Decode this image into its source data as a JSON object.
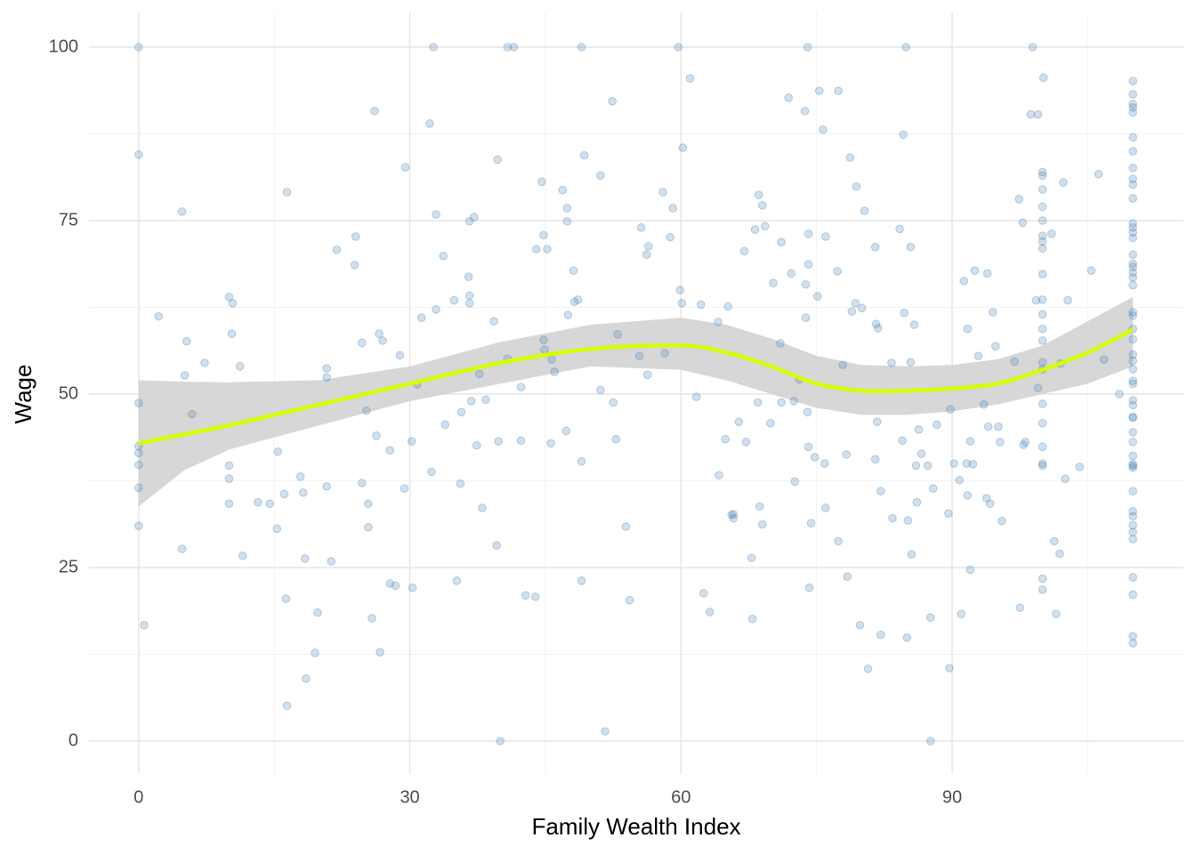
{
  "chart_data": {
    "type": "scatter",
    "x_label": "Family Wealth Index",
    "y_label": "Wage",
    "xlim": [
      -5.5,
      115.6
    ],
    "ylim": [
      -4.7,
      105
    ],
    "xticks": [
      0,
      30,
      60,
      90
    ],
    "yticks": [
      0,
      25,
      50,
      75,
      100
    ],
    "x_minor_grid": [
      15,
      45,
      75,
      105
    ],
    "y_minor_grid": [
      12.5,
      37.5,
      62.5,
      87.5
    ],
    "grid": true,
    "points": {
      "color": "#4682b4",
      "opacity": 0.25,
      "x": [
        0,
        0,
        0,
        0,
        0,
        0,
        0,
        0,
        0.6,
        2.2,
        4.8,
        4.8,
        5.3,
        5.1,
        5.9,
        7.3,
        10,
        10.4,
        10.3,
        10,
        10,
        10,
        11.2,
        11.5,
        13.2,
        14.5,
        15.4,
        15.3,
        16.1,
        16.3,
        16.4,
        16.4,
        17.9,
        18.2,
        18.4,
        18.5,
        19.8,
        19.5,
        20.8,
        20.8,
        20.8,
        21.3,
        21.9,
        24,
        23.9,
        24.7,
        24.7,
        25.2,
        25.4,
        25.4,
        25.8,
        26.1,
        26.3,
        26.6,
        27,
        26.7,
        27.8,
        27.8,
        28.4,
        28.9,
        29.4,
        29.5,
        30.2,
        30.3,
        30.8,
        31.3,
        32.2,
        32.4,
        32.6,
        32.9,
        32.9,
        33.7,
        33.9,
        34.9,
        35.2,
        35.7,
        35.6,
        36.5,
        36.6,
        37.1,
        36.6,
        36.6,
        36.8,
        37.4,
        37.7,
        38,
        38.4,
        39.3,
        39.6,
        39.7,
        39.8,
        40,
        40.8,
        41.5,
        40.8,
        42.3,
        42.3,
        42.8,
        43.9,
        44,
        44.6,
        44.8,
        45.2,
        44.8,
        44.9,
        45.7,
        46,
        45.6,
        46.9,
        47.4,
        47.4,
        47.5,
        47.3,
        48.1,
        48.2,
        48.6,
        49,
        49.3,
        49,
        49,
        51.1,
        51.1,
        51.6,
        52.4,
        52.5,
        52.8,
        53,
        53.9,
        54.3,
        55.4,
        55.6,
        56.2,
        56.4,
        56.3,
        58,
        58.2,
        58.8,
        59.1,
        59.7,
        59.9,
        60.1,
        60.2,
        61,
        61.7,
        62.2,
        62.5,
        63.2,
        64.1,
        64.2,
        64.9,
        65.2,
        65.6,
        65.8,
        65.8,
        66.4,
        67,
        67.2,
        67.8,
        67.9,
        68.2,
        68.5,
        68.6,
        68.7,
        69,
        69.3,
        69,
        69.9,
        70.2,
        71,
        71.1,
        71.1,
        71.9,
        72.2,
        72.6,
        72.5,
        73.1,
        73.8,
        73.7,
        74,
        73.8,
        74,
        74.1,
        74.1,
        74.1,
        74.2,
        74.4,
        74.8,
        75.1,
        75.3,
        75.7,
        76,
        75.9,
        76,
        77.3,
        77.4,
        77.4,
        77.9,
        78.3,
        78.4,
        78.7,
        78.9,
        79.4,
        79.3,
        79.8,
        80,
        80.3,
        80.7,
        81.5,
        81.6,
        81.8,
        81.5,
        81.7,
        82.1,
        82.1,
        83.3,
        83.4,
        84.2,
        84.6,
        84.5,
        84.7,
        84.9,
        85.1,
        85,
        85.4,
        85.4,
        85.5,
        85.8,
        86,
        86.1,
        86.3,
        86.6,
        87.3,
        87.6,
        87.6,
        87.9,
        88.3,
        89.6,
        89.7,
        89.8,
        90.2,
        90.8,
        91,
        91.3,
        91.6,
        91.7,
        91.7,
        92,
        92,
        92.3,
        92.5,
        92.9,
        93.5,
        93.9,
        93.8,
        94,
        94.2,
        94.5,
        94.8,
        95.1,
        95.3,
        95.5,
        96.9,
        97.4,
        97.5,
        97.9,
        98.1,
        97.8,
        98.7,
        98.9,
        99.5,
        99.3,
        99.5,
        100.1,
        101,
        101.5,
        101.3,
        102,
        101.9,
        102.3,
        102.5,
        102.8,
        104.1,
        105.4,
        106.2,
        106.8,
        108.5,
        100,
        100,
        100,
        100,
        100,
        100,
        100,
        100,
        100,
        100,
        100,
        100,
        100,
        100,
        100,
        100,
        100,
        100,
        100,
        100,
        100,
        100,
        110,
        110,
        110,
        110,
        110,
        110,
        110,
        110,
        110,
        110,
        110,
        110,
        110,
        110,
        110,
        110,
        110,
        110,
        110,
        110,
        110,
        110,
        110,
        110,
        110,
        110,
        110,
        110,
        110,
        110,
        110,
        110,
        110,
        110,
        110,
        110,
        110,
        110,
        110,
        110,
        110,
        110,
        110,
        110,
        110,
        110,
        110,
        110,
        110,
        110
      ],
      "y": [
        100,
        84.5,
        48.7,
        42.5,
        41.5,
        39.8,
        36.5,
        31,
        16.7,
        61.2,
        76.3,
        27.7,
        57.6,
        52.7,
        47.1,
        54.5,
        64,
        63.1,
        58.7,
        39.7,
        37.8,
        34.2,
        54,
        26.7,
        34.4,
        34.2,
        41.7,
        30.6,
        35.6,
        20.5,
        79.1,
        5.1,
        38.1,
        35.8,
        26.3,
        9,
        18.5,
        12.7,
        53.7,
        52.4,
        36.7,
        25.9,
        70.8,
        72.7,
        68.6,
        57.4,
        37.2,
        47.6,
        34.2,
        30.8,
        17.7,
        90.8,
        44,
        58.7,
        57.7,
        12.8,
        41.9,
        22.7,
        22.4,
        55.6,
        36.4,
        82.7,
        43.2,
        22.1,
        51.4,
        61,
        89,
        38.8,
        100,
        75.9,
        62.2,
        69.9,
        45.6,
        63.5,
        23.1,
        47.4,
        37.1,
        66.9,
        74.9,
        75.5,
        64.2,
        63.1,
        49,
        42.6,
        52.9,
        33.6,
        49.2,
        60.5,
        28.2,
        83.8,
        43.2,
        0,
        100,
        100,
        55.1,
        51,
        43.3,
        21,
        20.8,
        70.9,
        80.6,
        72.9,
        70.9,
        57.8,
        56.4,
        55,
        53.2,
        42.9,
        79.4,
        76.8,
        74.9,
        61.4,
        44.7,
        67.8,
        63.3,
        63.6,
        100,
        84.4,
        40.3,
        23.1,
        81.5,
        50.6,
        1.4,
        92.2,
        48.8,
        43.5,
        58.6,
        30.9,
        20.3,
        55.5,
        74,
        70.1,
        71.3,
        52.8,
        79.1,
        55.9,
        72.6,
        76.8,
        100,
        65,
        63.1,
        85.5,
        95.5,
        49.6,
        62.9,
        21.3,
        18.6,
        60.4,
        38.3,
        43.5,
        62.6,
        32.6,
        32.1,
        32.7,
        46,
        70.6,
        43.1,
        26.4,
        17.6,
        73.7,
        48.8,
        78.7,
        33.8,
        77.2,
        74.2,
        31.2,
        45.8,
        66,
        57.3,
        71.9,
        48.8,
        92.7,
        67.4,
        37.4,
        49,
        52.1,
        65.8,
        90.8,
        100,
        61,
        47.4,
        42.4,
        68.7,
        73.1,
        22.1,
        31.4,
        40.9,
        64.1,
        93.7,
        88.1,
        72.7,
        40,
        33.6,
        67.7,
        93.7,
        28.8,
        54.2,
        41.3,
        23.7,
        84.1,
        61.9,
        79.9,
        63.1,
        16.7,
        62.4,
        76.4,
        10.4,
        71.2,
        60.1,
        59.5,
        40.6,
        46,
        36,
        15.3,
        54.5,
        32.1,
        73.8,
        87.4,
        43.3,
        61.7,
        100,
        31.8,
        14.9,
        71.2,
        54.6,
        26.9,
        60,
        39.7,
        34.4,
        44.9,
        41.4,
        39.7,
        0,
        17.8,
        36.4,
        45.6,
        32.8,
        10.5,
        47.8,
        40,
        37.6,
        18.3,
        66.3,
        40,
        59.4,
        35.4,
        24.7,
        43.2,
        39.9,
        67.8,
        55.5,
        48.5,
        67.4,
        35,
        45.3,
        34.2,
        61.8,
        56.9,
        45.3,
        43.1,
        31.7,
        54.7,
        78.1,
        19.2,
        42.7,
        43.1,
        74.7,
        90.3,
        100,
        90.3,
        63.5,
        50.9,
        95.6,
        73.1,
        18.3,
        28.8,
        54.4,
        27,
        80.5,
        37.8,
        63.5,
        39.5,
        67.8,
        81.7,
        55,
        50,
        82,
        81.5,
        79.5,
        77,
        75,
        72.8,
        72,
        71,
        67.3,
        63.6,
        61.5,
        59.4,
        57.7,
        54.6,
        53.6,
        48.6,
        45.8,
        42.4,
        40,
        39.7,
        23.4,
        21.8,
        95.1,
        93.2,
        91.8,
        91.3,
        90.6,
        87,
        85,
        82.6,
        81,
        80.2,
        78.2,
        74.6,
        74,
        73.3,
        72.5,
        70.1,
        68.8,
        68.3,
        67.5,
        66.8,
        65.7,
        61.8,
        61.3,
        59.4,
        57.9,
        55.7,
        54.8,
        53.6,
        51.9,
        51.5,
        49.1,
        48.4,
        46.7,
        46.6,
        44.5,
        43.1,
        41.1,
        39.9,
        39.7,
        39.4,
        36,
        33.1,
        32.4,
        31.1,
        30.1,
        29.1,
        23.6,
        21.1,
        15.1,
        14.1
      ]
    },
    "smooth": {
      "color": "#d4ff00",
      "band_color": "#d3d3d3",
      "x": [
        0,
        5,
        10,
        20,
        30,
        40,
        50,
        60,
        65,
        70,
        75,
        80,
        85,
        90,
        95,
        100,
        105,
        110
      ],
      "y": [
        42.9,
        44.2,
        45.5,
        48.5,
        51.5,
        54.5,
        56.5,
        57,
        56,
        54,
        51.5,
        50.5,
        50.5,
        50.8,
        51.5,
        53.5,
        56,
        59.3
      ],
      "lower": [
        33.8,
        39,
        42,
        45.5,
        49,
        51.5,
        54,
        53.5,
        52,
        50,
        48,
        47,
        47,
        47.5,
        48.5,
        50,
        51.5,
        54
      ],
      "upper": [
        52,
        51.8,
        51.7,
        52,
        54,
        57.5,
        60,
        61,
        60,
        58,
        55.5,
        54.2,
        54,
        54.2,
        55,
        57,
        60.5,
        64
      ]
    }
  }
}
